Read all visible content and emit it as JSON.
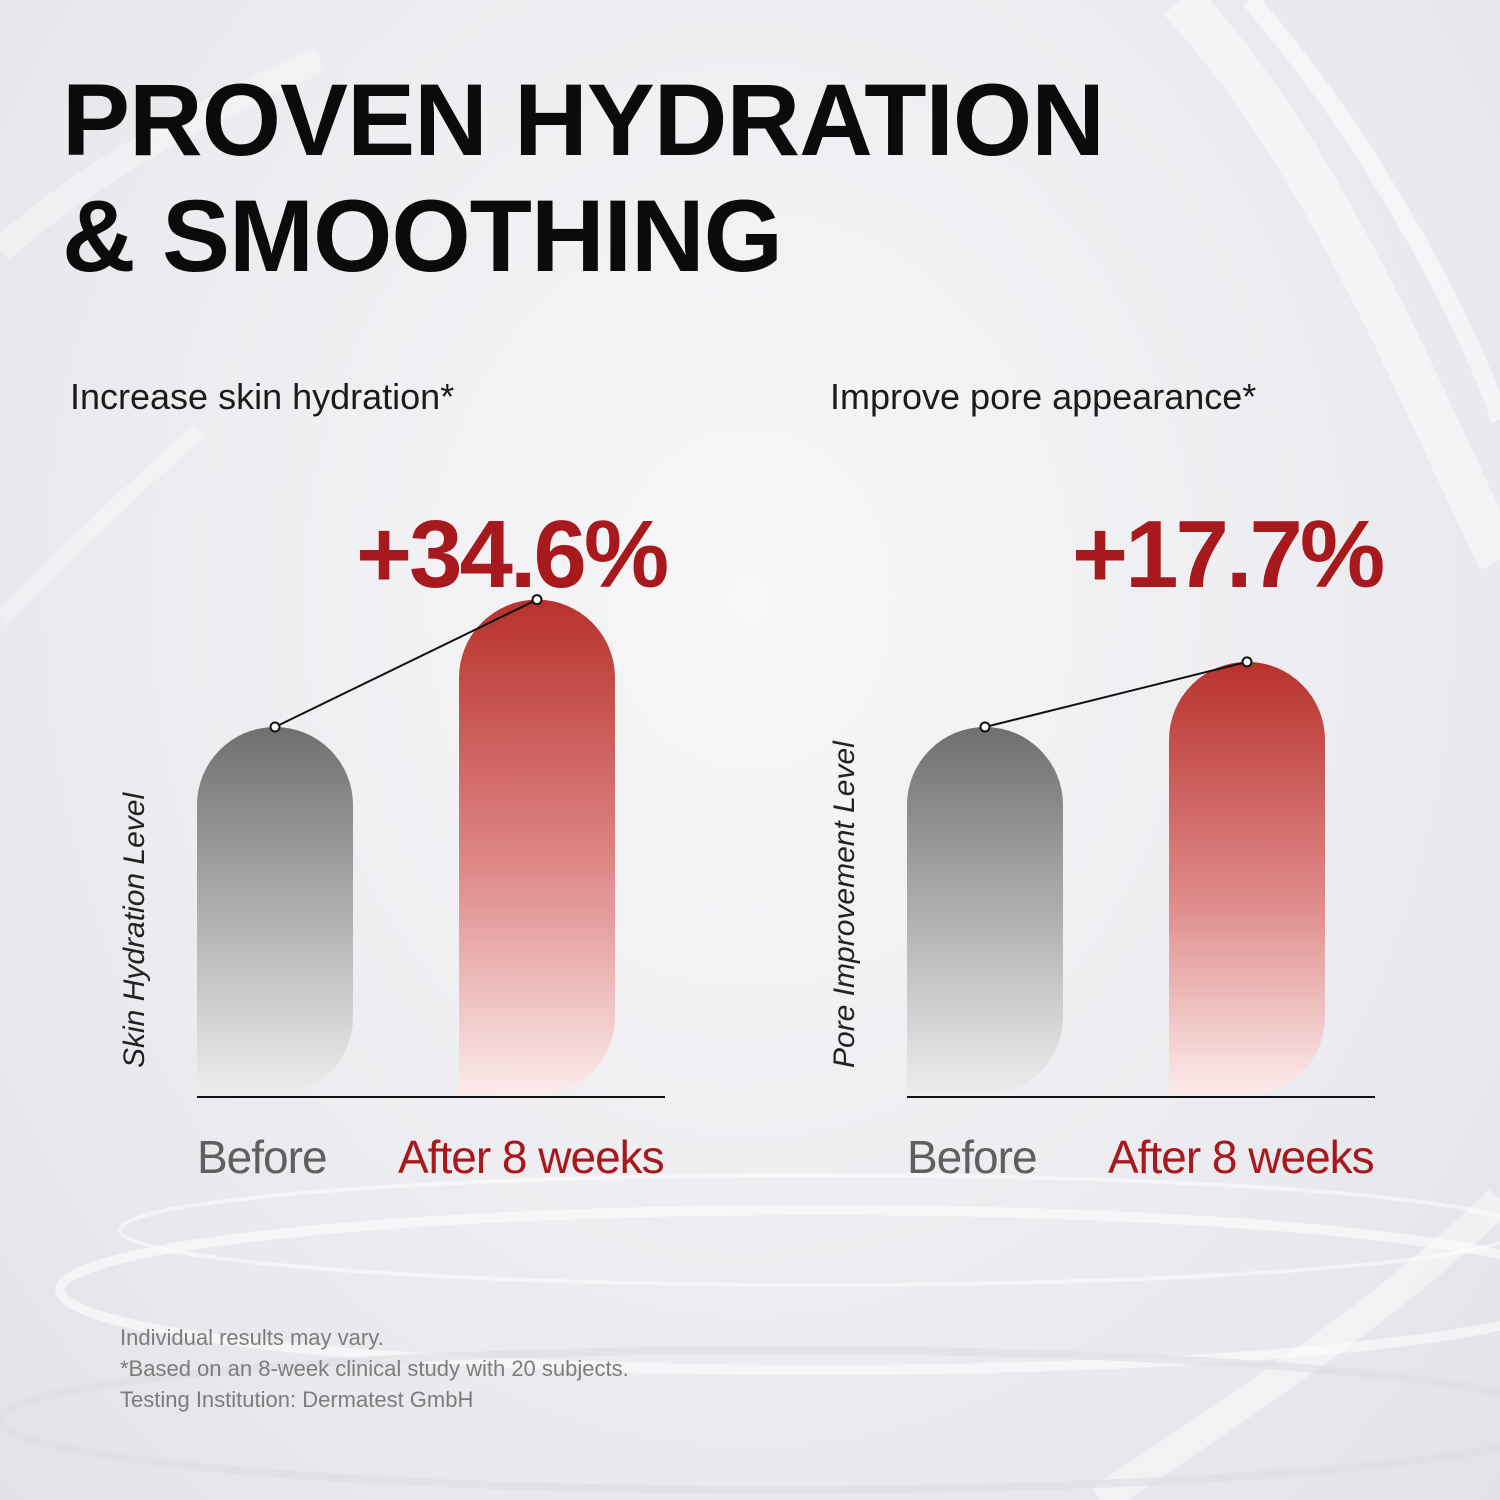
{
  "headline": {
    "line1": "PROVEN HYDRATION",
    "line2": "& SMOOTHING"
  },
  "colors": {
    "accent_red": "#a8191d",
    "before_gray": "#6f6f6f",
    "text_dark": "#0b0b0b"
  },
  "chart_data": [
    {
      "type": "bar",
      "title": "Increase skin hydration*",
      "ylabel": "Skin Hydration Level",
      "xlabel": "",
      "categories": [
        "Before",
        "After 8 weeks"
      ],
      "values": [
        1.0,
        1.346
      ],
      "change_label": "+34.6%",
      "axis_ticks_shown": false,
      "grid": false,
      "legend": "none",
      "colors": [
        "#6f6f6f",
        "#b8312c"
      ]
    },
    {
      "type": "bar",
      "title": "Improve pore appearance*",
      "ylabel": "Pore Improvement Level",
      "xlabel": "",
      "categories": [
        "Before",
        "After 8 weeks"
      ],
      "values": [
        1.0,
        1.177
      ],
      "change_label": "+17.7%",
      "axis_ticks_shown": false,
      "grid": false,
      "legend": "none",
      "colors": [
        "#6f6f6f",
        "#b8312c"
      ]
    }
  ],
  "footnotes": [
    "Individual results may vary.",
    "*Based on an 8-week clinical study with 20 subjects.",
    "Testing Institution: Dermatest GmbH"
  ]
}
